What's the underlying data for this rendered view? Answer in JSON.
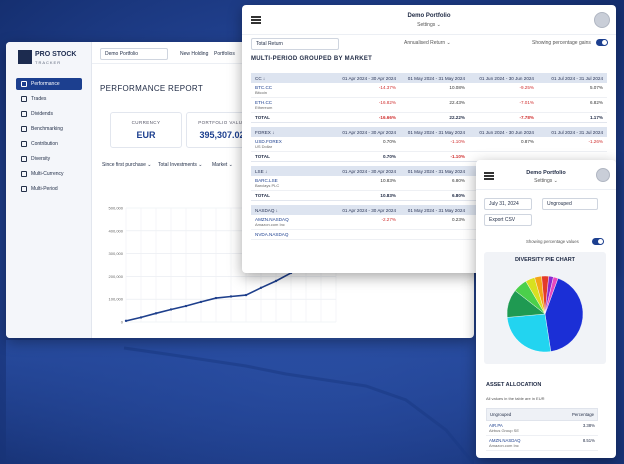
{
  "back_window": {
    "logo": {
      "title": "PRO STOCK",
      "subtitle": "TRACKER"
    },
    "portfolio_select": "Demo Portfolio",
    "top_links": [
      "New Holding",
      "Portfolios"
    ],
    "nav": [
      "Performance",
      "Trades",
      "Dividends",
      "Benchmarking",
      "Contribution",
      "Diversity",
      "Multi-Currency",
      "Multi-Period"
    ],
    "page_title": "PERFORMANCE REPORT",
    "cards": [
      {
        "label": "CURRENCY",
        "value": "EUR"
      },
      {
        "label": "PORTFOLIO VALUE",
        "value": "395,307.02"
      }
    ],
    "filters": [
      "Since first purchase",
      "Total Investments",
      "Market"
    ],
    "chart_data": {
      "type": "line",
      "y_ticks": [
        "500,000",
        "400,000",
        "300,000",
        "200,000",
        "100,000",
        "0"
      ],
      "ylim": [
        0,
        500000
      ],
      "grid": true,
      "series": [
        {
          "values": [
            5000,
            20000,
            38000,
            55000,
            70000,
            88000,
            105000,
            112000,
            118000,
            150000,
            180000,
            215000,
            260000,
            300000,
            345000
          ]
        }
      ]
    }
  },
  "mid_window": {
    "header": {
      "title": "Demo Portfolio",
      "subtitle": "Settings"
    },
    "controls": {
      "return_select": "Total Return",
      "annualised": "Annualised Return",
      "toggle_label": "Showing percentage gains"
    },
    "section_title": "MULTI-PERIOD GROUPED BY MARKET",
    "period_headers": [
      "01 Apr 2024 - 30 Apr 2024",
      "01 May 2024 - 31 May 2024",
      "01 Jun 2024 - 30 Jun 2024",
      "01 Jul 2024 - 31 Jul 2024"
    ],
    "groups": [
      {
        "market": "CC",
        "rows": [
          {
            "symbol": "BTC.CC",
            "name": "Bitcoin",
            "values": [
              "-14.37%",
              "10.08%",
              "-9.25%",
              "5.07%"
            ]
          },
          {
            "symbol": "ETH.CC",
            "name": "Ethereum",
            "values": [
              "-16.82%",
              "22.43%",
              "-7.01%",
              "6.82%"
            ]
          }
        ],
        "total_label": "TOTAL",
        "total": [
          "-16.66%",
          "22.22%",
          "-7.78%",
          "1.17%"
        ]
      },
      {
        "market": "FOREX",
        "rows": [
          {
            "symbol": "USD.FOREX",
            "name": "US Dollar",
            "values": [
              "0.70%",
              "-1.10%",
              "0.87%",
              "-1.26%"
            ]
          }
        ],
        "total_label": "TOTAL",
        "total": [
          "0.70%",
          "-1.10%",
          "",
          ""
        ]
      },
      {
        "market": "LSE",
        "rows": [
          {
            "symbol": "BARC.LSE",
            "name": "Barclays PLC",
            "values": [
              "10.83%",
              "6.80%",
              "",
              ""
            ]
          }
        ],
        "total_label": "TOTAL",
        "total": [
          "10.83%",
          "6.80%",
          "",
          ""
        ]
      },
      {
        "market": "NASDAQ",
        "rows": [
          {
            "symbol": "AMZN.NASDAQ",
            "name": "Amazon.com Inc",
            "values": [
              "-2.27%",
              "0.23%",
              "",
              ""
            ]
          },
          {
            "symbol": "NVDA.NASDAQ",
            "name": "",
            "values": [
              "",
              "",
              "",
              ""
            ]
          }
        ]
      }
    ]
  },
  "phone_window": {
    "header": {
      "title": "Demo Portfolio",
      "subtitle": "Settings"
    },
    "date_input": "July 31, 2024",
    "group_select": "Ungrouped",
    "export_select": "Export CSV",
    "toggle_label": "Showing percentage values",
    "pie_title": "DIVERSITY PIE CHART",
    "pie_chart": {
      "type": "pie",
      "slices": [
        {
          "value": 42,
          "color": "#1b2fd6"
        },
        {
          "value": 26,
          "color": "#22d4f0"
        },
        {
          "value": 12,
          "color": "#1f9a52"
        },
        {
          "value": 6,
          "color": "#4bd04b"
        },
        {
          "value": 4,
          "color": "#d8e020"
        },
        {
          "value": 3,
          "color": "#f4a418"
        },
        {
          "value": 3,
          "color": "#e33a2a"
        },
        {
          "value": 2,
          "color": "#8a2ad0"
        },
        {
          "value": 2,
          "color": "#e84ac0"
        }
      ]
    },
    "allocation_title": "ASSET ALLOCATION",
    "allocation_note": "All values in the table are in EUR",
    "allocation_headers": [
      "Ungrouped",
      "Percentage"
    ],
    "allocation_rows": [
      {
        "symbol": "AIR.PA",
        "name": "Airbus Group SE",
        "value": "3.38%"
      },
      {
        "symbol": "AMZN.NASDAQ",
        "name": "Amazon.com Inc",
        "value": "8.51%"
      }
    ]
  }
}
